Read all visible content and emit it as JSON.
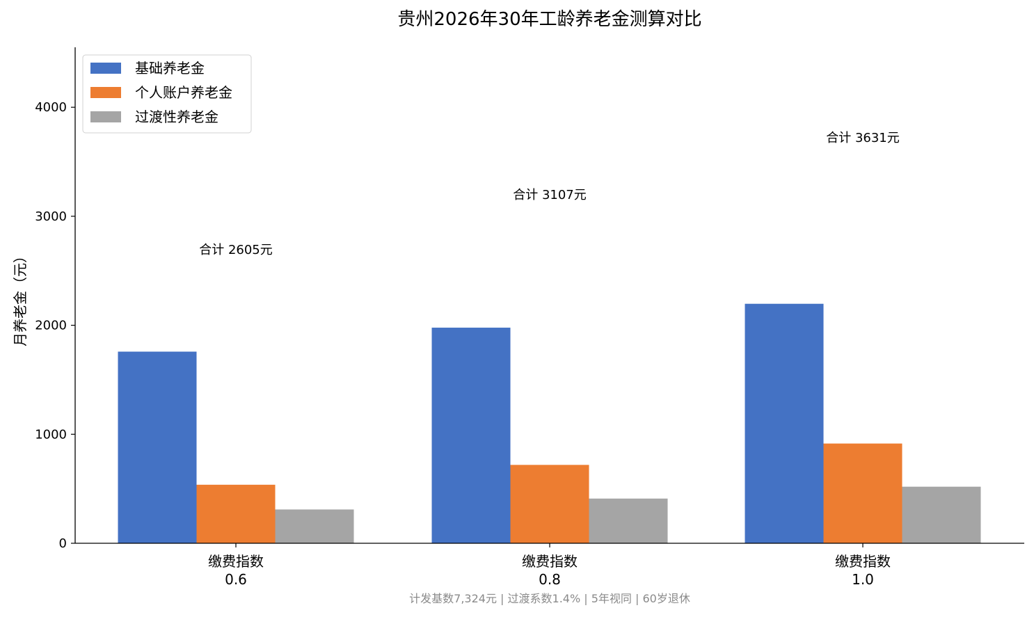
{
  "chart_data": {
    "type": "bar",
    "title": "贵州2026年30年工龄养老金测算对比",
    "ylabel": "月养老金（元）",
    "xlabel": "",
    "ylim": [
      0,
      4550
    ],
    "yticks": [
      0,
      1000,
      2000,
      3000,
      4000
    ],
    "categories": [
      {
        "line1": "缴费指数",
        "line2": "0.6"
      },
      {
        "line1": "缴费指数",
        "line2": "0.8"
      },
      {
        "line1": "缴费指数",
        "line2": "1.0"
      }
    ],
    "series": [
      {
        "name": "基础养老金",
        "color": "#4472c4",
        "values": [
          1758,
          1978,
          2197
        ]
      },
      {
        "name": "个人账户养老金",
        "color": "#ed7d31",
        "values": [
          537,
          719,
          915
        ]
      },
      {
        "name": "过渡性养老金",
        "color": "#a5a5a5",
        "values": [
          310,
          410,
          519
        ]
      }
    ],
    "totals": [
      "合计 2605元",
      "合计 3107元",
      "合计 3631元"
    ],
    "legend_position": "top-left",
    "grid": false,
    "footnote": "计发基数7,324元 | 过渡系数1.4% | 5年视同 | 60岁退休"
  }
}
